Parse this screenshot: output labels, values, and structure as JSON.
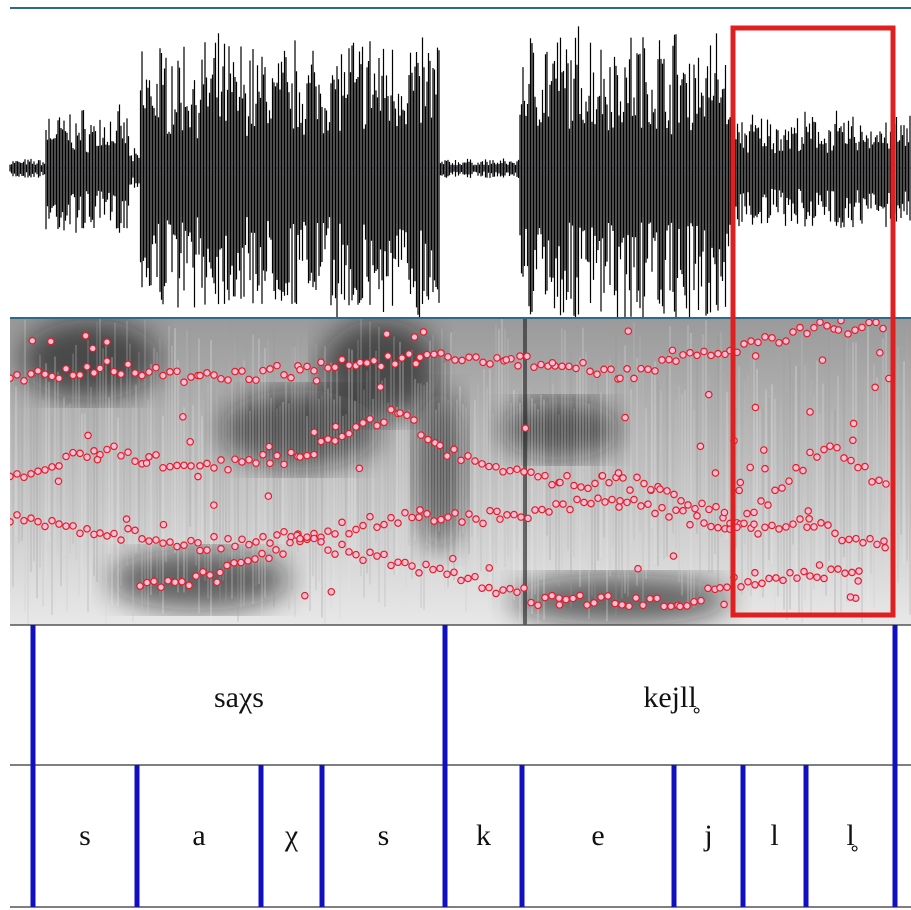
{
  "word_tier": {
    "intervals": [
      "saχs",
      "kejll̥"
    ]
  },
  "phone_tier": {
    "intervals": [
      "s",
      "a",
      "χ",
      "s",
      "k",
      "e",
      "j",
      "l",
      "l̥"
    ]
  }
}
